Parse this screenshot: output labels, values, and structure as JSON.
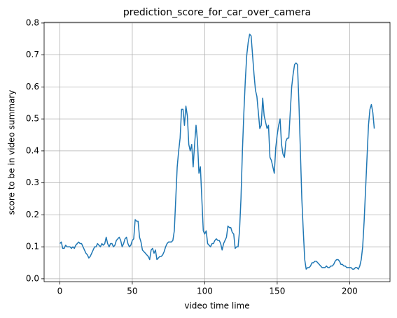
{
  "chart_data": {
    "type": "line",
    "title": "prediction_score_for_car_over_camera",
    "x_label": "video time lime",
    "y_label": "score to be in video summary",
    "x": [
      0,
      1,
      2,
      3,
      4,
      5,
      6,
      7,
      8,
      9,
      10,
      11,
      12,
      13,
      14,
      15,
      16,
      17,
      18,
      19,
      20,
      21,
      22,
      23,
      24,
      25,
      26,
      27,
      28,
      29,
      30,
      31,
      32,
      33,
      34,
      35,
      36,
      37,
      38,
      39,
      40,
      41,
      42,
      43,
      44,
      45,
      46,
      47,
      48,
      49,
      50,
      51,
      52,
      53,
      54,
      55,
      56,
      57,
      58,
      59,
      60,
      61,
      62,
      63,
      64,
      65,
      66,
      67,
      68,
      69,
      70,
      71,
      72,
      73,
      74,
      75,
      76,
      77,
      78,
      79,
      80,
      81,
      82,
      83,
      84,
      85,
      86,
      87,
      88,
      89,
      90,
      91,
      92,
      93,
      94,
      95,
      96,
      97,
      98,
      99,
      100,
      101,
      102,
      103,
      104,
      105,
      106,
      107,
      108,
      109,
      110,
      111,
      112,
      113,
      114,
      115,
      116,
      117,
      118,
      119,
      120,
      121,
      122,
      123,
      124,
      125,
      126,
      127,
      128,
      129,
      130,
      131,
      132,
      133,
      134,
      135,
      136,
      137,
      138,
      139,
      140,
      141,
      142,
      143,
      144,
      145,
      146,
      147,
      148,
      149,
      150,
      151,
      152,
      153,
      154,
      155,
      156,
      157,
      158,
      159,
      160,
      161,
      162,
      163,
      164,
      165,
      166,
      167,
      168,
      169,
      170,
      171,
      172,
      173,
      174,
      175,
      176,
      177,
      178,
      179,
      180,
      181,
      182,
      183,
      184,
      185,
      186,
      187,
      188,
      189,
      190,
      191,
      192,
      193,
      194,
      195,
      196,
      197,
      198,
      199,
      200,
      201,
      202,
      203,
      204,
      205,
      206,
      207,
      208,
      209,
      210,
      211,
      212,
      213,
      214,
      215,
      216,
      217
    ],
    "series": [
      {
        "color": "#1f77b4",
        "values": [
          0.11,
          0.115,
          0.095,
          0.095,
          0.105,
          0.1,
          0.1,
          0.1,
          0.095,
          0.1,
          0.095,
          0.105,
          0.11,
          0.115,
          0.11,
          0.11,
          0.1,
          0.09,
          0.08,
          0.075,
          0.065,
          0.07,
          0.08,
          0.09,
          0.1,
          0.1,
          0.11,
          0.105,
          0.1,
          0.11,
          0.105,
          0.11,
          0.13,
          0.11,
          0.1,
          0.11,
          0.11,
          0.1,
          0.105,
          0.12,
          0.125,
          0.13,
          0.12,
          0.1,
          0.11,
          0.125,
          0.13,
          0.11,
          0.1,
          0.105,
          0.12,
          0.125,
          0.185,
          0.18,
          0.18,
          0.13,
          0.115,
          0.09,
          0.085,
          0.08,
          0.075,
          0.07,
          0.06,
          0.09,
          0.095,
          0.08,
          0.09,
          0.06,
          0.065,
          0.07,
          0.07,
          0.075,
          0.085,
          0.1,
          0.11,
          0.115,
          0.115,
          0.115,
          0.12,
          0.15,
          0.25,
          0.35,
          0.4,
          0.44,
          0.53,
          0.53,
          0.48,
          0.54,
          0.51,
          0.42,
          0.4,
          0.42,
          0.35,
          0.42,
          0.48,
          0.43,
          0.33,
          0.35,
          0.25,
          0.15,
          0.14,
          0.15,
          0.11,
          0.105,
          0.1,
          0.11,
          0.11,
          0.12,
          0.125,
          0.12,
          0.12,
          0.11,
          0.09,
          0.11,
          0.12,
          0.13,
          0.165,
          0.16,
          0.16,
          0.145,
          0.14,
          0.095,
          0.1,
          0.1,
          0.15,
          0.25,
          0.4,
          0.52,
          0.62,
          0.7,
          0.74,
          0.765,
          0.76,
          0.7,
          0.64,
          0.59,
          0.57,
          0.52,
          0.47,
          0.48,
          0.565,
          0.51,
          0.49,
          0.47,
          0.48,
          0.38,
          0.37,
          0.35,
          0.33,
          0.41,
          0.45,
          0.48,
          0.5,
          0.42,
          0.39,
          0.38,
          0.43,
          0.44,
          0.44,
          0.52,
          0.6,
          0.64,
          0.67,
          0.675,
          0.67,
          0.55,
          0.4,
          0.25,
          0.15,
          0.06,
          0.03,
          0.035,
          0.035,
          0.04,
          0.05,
          0.05,
          0.055,
          0.055,
          0.05,
          0.045,
          0.04,
          0.035,
          0.035,
          0.035,
          0.04,
          0.035,
          0.035,
          0.04,
          0.04,
          0.045,
          0.055,
          0.06,
          0.06,
          0.055,
          0.045,
          0.045,
          0.04,
          0.04,
          0.035,
          0.035,
          0.035,
          0.035,
          0.03,
          0.03,
          0.035,
          0.035,
          0.03,
          0.04,
          0.06,
          0.1,
          0.18,
          0.28,
          0.38,
          0.48,
          0.53,
          0.545,
          0.52,
          0.47
        ]
      }
    ],
    "xlim": [
      -10.85,
      227.85
    ],
    "ylim": [
      -0.009,
      0.802
    ],
    "xticks": [
      0,
      50,
      100,
      150,
      200
    ],
    "yticks": [
      {
        "value": 0,
        "label": "0.0"
      },
      0.1,
      0.2,
      0.3,
      0.4,
      0.5,
      0.6,
      0.7,
      0.8
    ],
    "grid": true
  }
}
